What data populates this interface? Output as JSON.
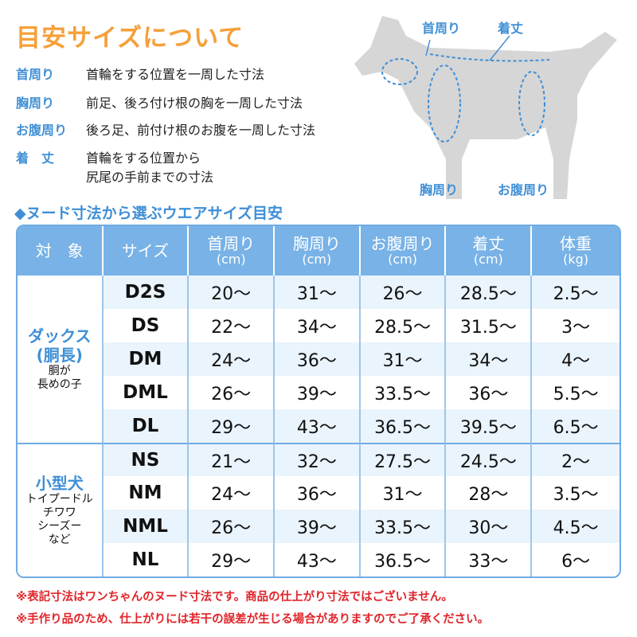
{
  "title": "目安サイズについて",
  "definitions": [
    {
      "term": "首周り",
      "desc": "首輪をする位置を一周した寸法"
    },
    {
      "term": "胸周り",
      "desc": "前足、後ろ付け根の胸を一周した寸法"
    },
    {
      "term": "お腹周り",
      "desc": "後ろ足、前付け根のお腹を一周した寸法"
    },
    {
      "term": "着　丈",
      "desc": "首輪をする位置から",
      "desc2": "尻尾の手前までの寸法"
    }
  ],
  "diagram": {
    "neck": "首周り",
    "length": "着丈",
    "chest": "胸周り",
    "belly": "お腹周り",
    "accent": "#3f8fd6"
  },
  "subtitle": "◆ヌード寸法から選ぶウエアサイズ目安",
  "table": {
    "headers": [
      {
        "t": "対　象",
        "u": ""
      },
      {
        "t": "サイズ",
        "u": ""
      },
      {
        "t": "首周り",
        "u": "(cm)"
      },
      {
        "t": "胸周り",
        "u": "(cm)"
      },
      {
        "t": "お腹周り",
        "u": "(cm)"
      },
      {
        "t": "着丈",
        "u": "(cm)"
      },
      {
        "t": "体重",
        "u": "(kg)"
      }
    ],
    "groups": [
      {
        "name": "ダックス",
        "name2": "(胴長)",
        "note": "胴が\n長めの子",
        "rows": [
          [
            "D2S",
            "20〜",
            "31〜",
            "26〜",
            "28.5〜",
            "2.5〜"
          ],
          [
            "DS",
            "22〜",
            "34〜",
            "28.5〜",
            "31.5〜",
            "3〜"
          ],
          [
            "DM",
            "24〜",
            "36〜",
            "31〜",
            "34〜",
            "4〜"
          ],
          [
            "DML",
            "26〜",
            "39〜",
            "33.5〜",
            "36〜",
            "5.5〜"
          ],
          [
            "DL",
            "29〜",
            "43〜",
            "36.5〜",
            "39.5〜",
            "6.5〜"
          ]
        ]
      },
      {
        "name": "小型犬",
        "name2": "",
        "note": "トイプードル\nチワワ\nシーズー\nなど",
        "rows": [
          [
            "NS",
            "21〜",
            "32〜",
            "27.5〜",
            "24.5〜",
            "2〜"
          ],
          [
            "NM",
            "24〜",
            "36〜",
            "31〜",
            "28〜",
            "3.5〜"
          ],
          [
            "NML",
            "26〜",
            "39〜",
            "33.5〜",
            "30〜",
            "4.5〜"
          ],
          [
            "NL",
            "29〜",
            "43〜",
            "36.5〜",
            "33〜",
            "6〜"
          ]
        ]
      }
    ]
  },
  "notes": [
    "※表記寸法はワンちゃんのヌード寸法です。商品の仕上がり寸法ではございません。",
    "※手作り品のため、仕上がりには若干の誤差が生じる場合がありますのでご了承ください。"
  ]
}
